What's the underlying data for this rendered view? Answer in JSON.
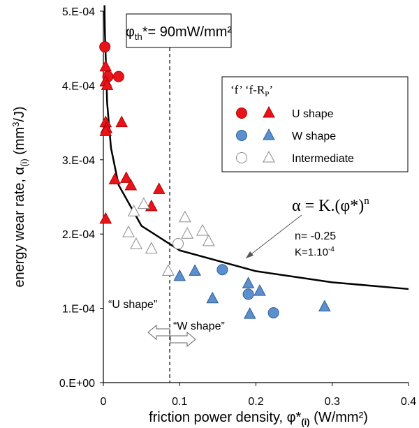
{
  "chart_data": {
    "type": "scatter",
    "ylabel": [
      "energy wear rate, α",
      "(i)",
      " (mm",
      "3",
      "/J)"
    ],
    "xlabel": [
      "friction power density, φ*",
      "(i)",
      " (W/mm²)"
    ],
    "xlim": [
      0,
      0.4
    ],
    "xticks": [
      0,
      0.1,
      0.2,
      0.3,
      0.4
    ],
    "ylim": [
      0,
      0.0005
    ],
    "yticks": [
      {
        "value": 0,
        "label": "0.E+00"
      },
      {
        "value": 0.0001,
        "label": "1.E-04"
      },
      {
        "value": 0.0002,
        "label": "2.E-04"
      },
      {
        "value": 0.0003,
        "label": "3.E-04"
      },
      {
        "value": 0.0004,
        "label": "4.E-04"
      },
      {
        "value": 0.0005,
        "label": "5.E-04"
      }
    ],
    "legend_header": [
      "‘f’  ‘f-R",
      "P",
      "’"
    ],
    "series": [
      {
        "name": "U shape",
        "color": "#e8141c",
        "edge": "#b00000",
        "f": {
          "x": [
            0.002,
            0.006,
            0.02
          ],
          "values": [
            0.000452,
            0.000412,
            0.000412
          ]
        },
        "f_rp": {
          "x": [
            0.003,
            0.003,
            0.005,
            0.003,
            0.004,
            0.003,
            0.024,
            0.015,
            0.03,
            0.036,
            0.063,
            0.073,
            0.003
          ],
          "values": [
            0.000425,
            0.000405,
            0.0004,
            0.00035,
            0.000342,
            0.000338,
            0.00035,
            0.000273,
            0.000275,
            0.000265,
            0.000237,
            0.00026,
            0.00022
          ]
        }
      },
      {
        "name": "W shape",
        "color": "#5b8fce",
        "edge": "#2f5f97",
        "f": {
          "x": [
            0.156,
            0.19,
            0.223
          ],
          "values": [
            0.000152,
            0.000119,
            9.4e-05
          ]
        },
        "f_rp": {
          "x": [
            0.1,
            0.12,
            0.143,
            0.19,
            0.192,
            0.205,
            0.29
          ],
          "values": [
            0.000143,
            0.00015,
            0.000113,
            0.000133,
            9.2e-05,
            0.000123,
            0.000102
          ]
        }
      },
      {
        "name": "Intermediate",
        "color": "#ffffff",
        "edge": "#8a8a8a",
        "f": {
          "x": [
            0.098
          ],
          "values": [
            0.000187
          ]
        },
        "f_rp": {
          "x": [
            0.04,
            0.033,
            0.043,
            0.053,
            0.063,
            0.085,
            0.107,
            0.11,
            0.13,
            0.138
          ],
          "values": [
            0.00023,
            0.000202,
            0.000186,
            0.00024,
            0.00018,
            0.00015,
            0.000222,
            0.0002,
            0.000204,
            0.00019
          ]
        }
      }
    ],
    "curve": {
      "x": [
        0.0015,
        0.002,
        0.005,
        0.01,
        0.02,
        0.05,
        0.1,
        0.2,
        0.3,
        0.4
      ],
      "values": [
        0.000508,
        0.000473,
        0.000376,
        0.000316,
        0.000266,
        0.000211,
        0.000178,
        0.00015,
        0.000135,
        0.000126
      ]
    },
    "threshold_x": 0.087,
    "threshold_label": [
      "φ",
      "th",
      "*= 90mW/mm²"
    ],
    "formula": [
      "α = K.(φ*)",
      "n"
    ],
    "n_label": "n= -0.25",
    "k_label": [
      "K=1.10",
      "-4"
    ],
    "u_shape_label": "“U shape”",
    "w_shape_label": "“W shape”"
  }
}
